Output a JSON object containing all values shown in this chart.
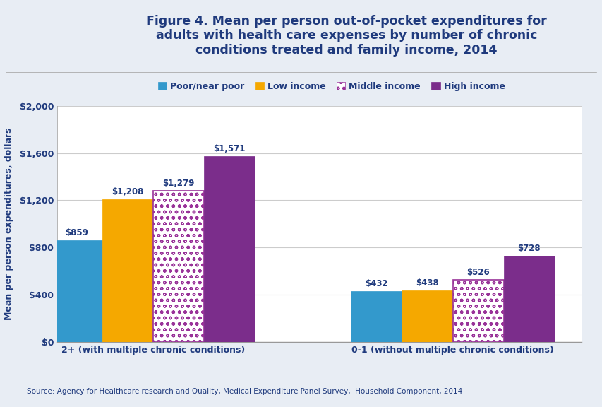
{
  "title": "Figure 4. Mean per person out-of-pocket expenditures for\nadults with health care expenses by number of chronic\nconditions treated and family income, 2014",
  "ylabel": "Mean per person expenditures, dollars",
  "source": "Source: Agency for Healthcare research and Quality, Medical Expenditure Panel Survey,  Household Component, 2014",
  "groups": [
    "2+ (with multiple chronic conditions)",
    "0-1 (without multiple chronic conditions)"
  ],
  "categories": [
    "Poor/near poor",
    "Low income",
    "Middle income",
    "High income"
  ],
  "values": [
    [
      859,
      1208,
      1279,
      1571
    ],
    [
      432,
      438,
      526,
      728
    ]
  ],
  "bar_colors": [
    "#3399CC",
    "#F5A800",
    "#FFFFFF",
    "#7B2D8B"
  ],
  "bar_hatches": [
    "",
    "",
    "oo",
    ""
  ],
  "bar_edge_colors": [
    "#3399CC",
    "#F5A800",
    "#993399",
    "#7B2D8B"
  ],
  "hatch_colors": [
    "#3399CC",
    "#F5A800",
    "#993399",
    "#7B2D8B"
  ],
  "ylim": [
    0,
    2000
  ],
  "yticks": [
    0,
    400,
    800,
    1200,
    1600,
    2000
  ],
  "ytick_labels": [
    "$0",
    "$400",
    "$800",
    "$1,200",
    "$1,600",
    "$2,000"
  ],
  "title_color": "#1F3A7D",
  "label_color": "#1F3A7D",
  "tick_color": "#1F3A7D",
  "background_color": "#D9DFE8",
  "body_bg_color": "#E8EDF4",
  "plot_bg_color": "#FFFFFF",
  "header_bg_color": "#C5D0DF",
  "title_fontsize": 12.5,
  "label_fontsize": 9,
  "annotation_fontsize": 8.5,
  "legend_fontsize": 9,
  "bar_width": 0.17,
  "group_centers": [
    0.42,
    1.42
  ]
}
